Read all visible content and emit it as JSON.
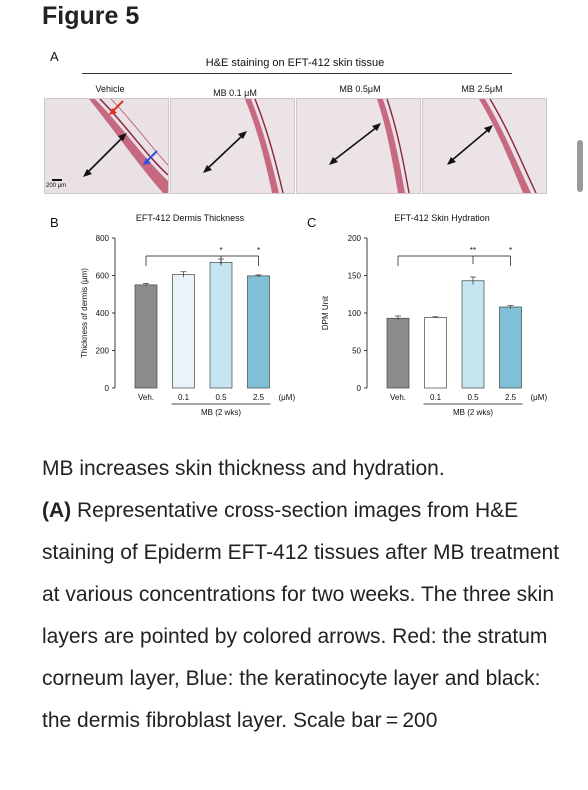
{
  "figure": {
    "heading": "Figure 5",
    "panel_a": {
      "label": "A",
      "title": "H&E staining on EFT-412 skin tissue",
      "conditions": [
        "Vehicle",
        "MB 0.1 μM",
        "MB 0.5μM",
        "MB 2.5μM"
      ],
      "scale_bar_label": "200 μm"
    },
    "panel_b": {
      "label": "B"
    },
    "panel_c": {
      "label": "C"
    }
  },
  "chart_data": [
    {
      "type": "bar",
      "title": "EFT-412 Dermis Thickness",
      "ylabel": "Thickness of dermis (μm)",
      "xlabel": "MB (2 wks)",
      "unit_label": "(μM)",
      "categories": [
        "Veh.",
        "0.1",
        "0.5",
        "2.5"
      ],
      "values": [
        550,
        605,
        670,
        598
      ],
      "errors": [
        8,
        15,
        18,
        5
      ],
      "colors": [
        "#8c8c8c",
        "#e9f4f9",
        "#c5e6f0",
        "#7fc0d7"
      ],
      "ylim": [
        0,
        800
      ],
      "yticks": [
        0,
        200,
        400,
        600,
        800
      ],
      "significance": [
        "",
        "",
        "*",
        "*"
      ]
    },
    {
      "type": "bar",
      "title": "EFT-412 Skin Hydration",
      "ylabel": "DPM Unit",
      "xlabel": "MB (2 wks)",
      "unit_label": "(μM)",
      "categories": [
        "Veh.",
        "0.1",
        "0.5",
        "2.5"
      ],
      "values": [
        93,
        94,
        143,
        108
      ],
      "errors": [
        3,
        1,
        5,
        2
      ],
      "colors": [
        "#8c8c8c",
        "#ffffff",
        "#c5e6f0",
        "#7fc0d7"
      ],
      "ylim": [
        0,
        200
      ],
      "yticks": [
        0,
        50,
        100,
        150,
        200
      ],
      "significance": [
        "",
        "",
        "**",
        "*"
      ]
    }
  ],
  "caption": {
    "title": "MB increases skin thickness and hydration.",
    "panel_ref": "(A)",
    "text": " Representative cross-section images from H&E staining of Epiderm EFT-412 tissues after MB treatment at various concentrations for two weeks. The three skin layers are pointed by colored arrows. Red: the stratum corneum layer, Blue: the keratinocyte layer and black: the dermis fibroblast layer. Scale bar = 200"
  },
  "colors": {
    "tissue_stain": "#c0536f",
    "tissue_background": "#eee7ea",
    "arrow_red": "#e03020",
    "arrow_blue": "#3050e0",
    "arrow_black": "#111111"
  }
}
